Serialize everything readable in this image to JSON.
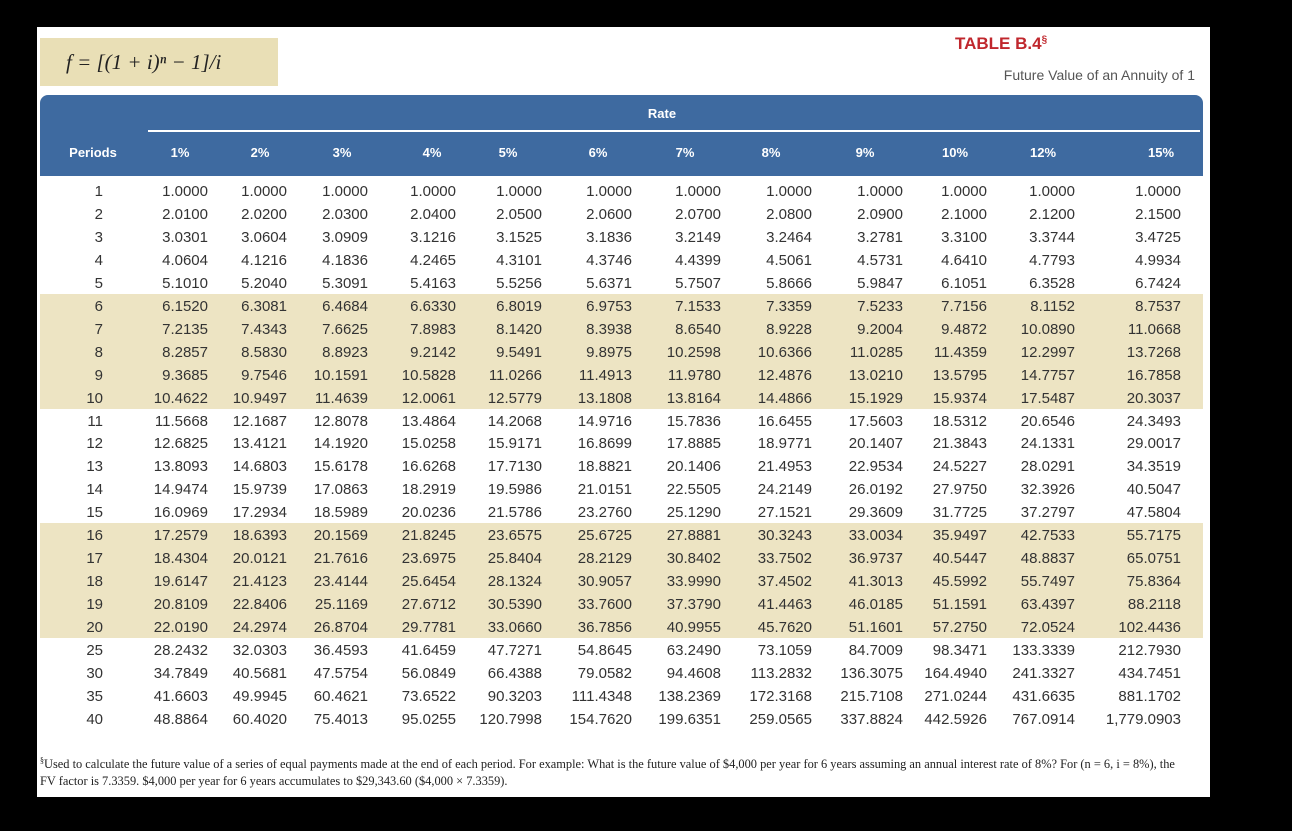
{
  "formula": "f = [(1 + i)ⁿ − 1]/i",
  "header": {
    "title": "TABLE B.4",
    "title_mark": "§",
    "subtitle": "Future Value of an Annuity of 1"
  },
  "table": {
    "group_label": "Rate",
    "columns": [
      "Periods",
      "1%",
      "2%",
      "3%",
      "4%",
      "5%",
      "6%",
      "7%",
      "8%",
      "9%",
      "10%",
      "12%",
      "15%"
    ],
    "rows": [
      [
        "1",
        "1.0000",
        "1.0000",
        "1.0000",
        "1.0000",
        "1.0000",
        "1.0000",
        "1.0000",
        "1.0000",
        "1.0000",
        "1.0000",
        "1.0000",
        "1.0000"
      ],
      [
        "2",
        "2.0100",
        "2.0200",
        "2.0300",
        "2.0400",
        "2.0500",
        "2.0600",
        "2.0700",
        "2.0800",
        "2.0900",
        "2.1000",
        "2.1200",
        "2.1500"
      ],
      [
        "3",
        "3.0301",
        "3.0604",
        "3.0909",
        "3.1216",
        "3.1525",
        "3.1836",
        "3.2149",
        "3.2464",
        "3.2781",
        "3.3100",
        "3.3744",
        "3.4725"
      ],
      [
        "4",
        "4.0604",
        "4.1216",
        "4.1836",
        "4.2465",
        "4.3101",
        "4.3746",
        "4.4399",
        "4.5061",
        "4.5731",
        "4.6410",
        "4.7793",
        "4.9934"
      ],
      [
        "5",
        "5.1010",
        "5.2040",
        "5.3091",
        "5.4163",
        "5.5256",
        "5.6371",
        "5.7507",
        "5.8666",
        "5.9847",
        "6.1051",
        "6.3528",
        "6.7424"
      ],
      [
        "6",
        "6.1520",
        "6.3081",
        "6.4684",
        "6.6330",
        "6.8019",
        "6.9753",
        "7.1533",
        "7.3359",
        "7.5233",
        "7.7156",
        "8.1152",
        "8.7537"
      ],
      [
        "7",
        "7.2135",
        "7.4343",
        "7.6625",
        "7.8983",
        "8.1420",
        "8.3938",
        "8.6540",
        "8.9228",
        "9.2004",
        "9.4872",
        "10.0890",
        "11.0668"
      ],
      [
        "8",
        "8.2857",
        "8.5830",
        "8.8923",
        "9.2142",
        "9.5491",
        "9.8975",
        "10.2598",
        "10.6366",
        "11.0285",
        "11.4359",
        "12.2997",
        "13.7268"
      ],
      [
        "9",
        "9.3685",
        "9.7546",
        "10.1591",
        "10.5828",
        "11.0266",
        "11.4913",
        "11.9780",
        "12.4876",
        "13.0210",
        "13.5795",
        "14.7757",
        "16.7858"
      ],
      [
        "10",
        "10.4622",
        "10.9497",
        "11.4639",
        "12.0061",
        "12.5779",
        "13.1808",
        "13.8164",
        "14.4866",
        "15.1929",
        "15.9374",
        "17.5487",
        "20.3037"
      ],
      [
        "11",
        "11.5668",
        "12.1687",
        "12.8078",
        "13.4864",
        "14.2068",
        "14.9716",
        "15.7836",
        "16.6455",
        "17.5603",
        "18.5312",
        "20.6546",
        "24.3493"
      ],
      [
        "12",
        "12.6825",
        "13.4121",
        "14.1920",
        "15.0258",
        "15.9171",
        "16.8699",
        "17.8885",
        "18.9771",
        "20.1407",
        "21.3843",
        "24.1331",
        "29.0017"
      ],
      [
        "13",
        "13.8093",
        "14.6803",
        "15.6178",
        "16.6268",
        "17.7130",
        "18.8821",
        "20.1406",
        "21.4953",
        "22.9534",
        "24.5227",
        "28.0291",
        "34.3519"
      ],
      [
        "14",
        "14.9474",
        "15.9739",
        "17.0863",
        "18.2919",
        "19.5986",
        "21.0151",
        "22.5505",
        "24.2149",
        "26.0192",
        "27.9750",
        "32.3926",
        "40.5047"
      ],
      [
        "15",
        "16.0969",
        "17.2934",
        "18.5989",
        "20.0236",
        "21.5786",
        "23.2760",
        "25.1290",
        "27.1521",
        "29.3609",
        "31.7725",
        "37.2797",
        "47.5804"
      ],
      [
        "16",
        "17.2579",
        "18.6393",
        "20.1569",
        "21.8245",
        "23.6575",
        "25.6725",
        "27.8881",
        "30.3243",
        "33.0034",
        "35.9497",
        "42.7533",
        "55.7175"
      ],
      [
        "17",
        "18.4304",
        "20.0121",
        "21.7616",
        "23.6975",
        "25.8404",
        "28.2129",
        "30.8402",
        "33.7502",
        "36.9737",
        "40.5447",
        "48.8837",
        "65.0751"
      ],
      [
        "18",
        "19.6147",
        "21.4123",
        "23.4144",
        "25.6454",
        "28.1324",
        "30.9057",
        "33.9990",
        "37.4502",
        "41.3013",
        "45.5992",
        "55.7497",
        "75.8364"
      ],
      [
        "19",
        "20.8109",
        "22.8406",
        "25.1169",
        "27.6712",
        "30.5390",
        "33.7600",
        "37.3790",
        "41.4463",
        "46.0185",
        "51.1591",
        "63.4397",
        "88.2118"
      ],
      [
        "20",
        "22.0190",
        "24.2974",
        "26.8704",
        "29.7781",
        "33.0660",
        "36.7856",
        "40.9955",
        "45.7620",
        "51.1601",
        "57.2750",
        "72.0524",
        "102.4436"
      ],
      [
        "25",
        "28.2432",
        "32.0303",
        "36.4593",
        "41.6459",
        "47.7271",
        "54.8645",
        "63.2490",
        "73.1059",
        "84.7009",
        "98.3471",
        "133.3339",
        "212.7930"
      ],
      [
        "30",
        "34.7849",
        "40.5681",
        "47.5754",
        "56.0849",
        "66.4388",
        "79.0582",
        "94.4608",
        "113.2832",
        "136.3075",
        "164.4940",
        "241.3327",
        "434.7451"
      ],
      [
        "35",
        "41.6603",
        "49.9945",
        "60.4621",
        "73.6522",
        "90.3203",
        "111.4348",
        "138.2369",
        "172.3168",
        "215.7108",
        "271.0244",
        "431.6635",
        "881.1702"
      ],
      [
        "40",
        "48.8864",
        "60.4020",
        "75.4013",
        "95.0255",
        "120.7998",
        "154.7620",
        "199.6351",
        "259.0565",
        "337.8824",
        "442.5926",
        "767.0914",
        "1,779.0903"
      ]
    ]
  },
  "footnote": {
    "mark": "§",
    "text": "Used to calculate the future value of a series of equal payments made at the end of each period. For example: What is the future value of $4,000 per year for 6 years assuming an annual interest rate of 8%? For (n = 6, i = 8%), the FV factor is 7.3359. $4,000 per year for 6 years accumulates to $29,343.60 ($4,000 × 7.3359)."
  }
}
